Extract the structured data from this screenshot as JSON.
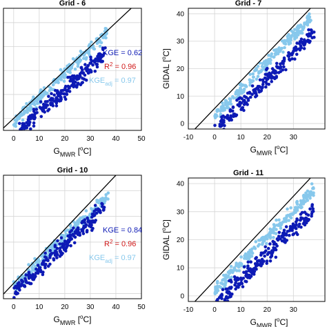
{
  "colors": {
    "measured": "#0d1ab5",
    "adjusted": "#87c8ec",
    "line": "#000000",
    "kge": "#0d1ab5",
    "r2": "#d01818",
    "kge_adj": "#87c8ec"
  },
  "chart_data": [
    {
      "type": "scatter",
      "title": "Grid - 6",
      "xlabel": "GMWR [oC]",
      "ylabel": "",
      "xlim": [
        -4,
        50
      ],
      "ylim": [
        -5,
        46
      ],
      "xticks": [
        "0",
        "10",
        "20",
        "30",
        "40",
        "50"
      ],
      "yticks": [],
      "grid": true,
      "stats": {
        "kge_label": "KGE = 0.62",
        "r2_label": "R2 = 0.96",
        "kge_adj_label": "KGEadj = 0.97"
      },
      "line": {
        "slope": 1,
        "intercept": 0
      },
      "series": [
        {
          "role": "adjusted",
          "slope": 1.02,
          "intercept": -1.5,
          "xrange": [
            0,
            37
          ],
          "noise": 1.8
        },
        {
          "role": "measured",
          "slope": 0.95,
          "intercept": -7.0,
          "xrange": [
            2,
            36
          ],
          "noise": 2.4
        }
      ]
    },
    {
      "type": "scatter",
      "title": "Grid - 7",
      "xlabel": "GMWR [oC]",
      "ylabel": "GIDAL [oC]",
      "xlim": [
        -10,
        42
      ],
      "ylim": [
        -2,
        42
      ],
      "xticks": [
        "-10",
        "0",
        "10",
        "20",
        "30"
      ],
      "yticks": [
        "0",
        "10",
        "20",
        "30",
        "40"
      ],
      "grid": true,
      "line": {
        "slope": 1.0,
        "intercept": 5.5
      },
      "series": [
        {
          "role": "adjusted",
          "slope": 1.0,
          "intercept": 2.0,
          "xrange": [
            0,
            37
          ],
          "noise": 1.6
        },
        {
          "role": "measured",
          "slope": 0.95,
          "intercept": -3.0,
          "xrange": [
            0,
            38
          ],
          "noise": 2.2
        }
      ]
    },
    {
      "type": "scatter",
      "title": "Grid - 10",
      "xlabel": "GMWR [oC]",
      "ylabel": "",
      "xlim": [
        -4,
        50
      ],
      "ylim": [
        -2,
        46
      ],
      "xticks": [
        "0",
        "10",
        "20",
        "30",
        "40",
        "50"
      ],
      "yticks": [],
      "grid": true,
      "stats": {
        "kge_label": "KGE = 0.84",
        "r2_label": "R2 = 0.96",
        "kge_adj_label": "KGEadj = 0.97"
      },
      "line": {
        "slope": 1.05,
        "intercept": 4.0
      },
      "series": [
        {
          "role": "adjusted",
          "slope": 0.95,
          "intercept": 3.0,
          "xrange": [
            0,
            37
          ],
          "noise": 1.8
        },
        {
          "role": "measured",
          "slope": 0.95,
          "intercept": 0.0,
          "xrange": [
            0,
            36
          ],
          "noise": 2.5
        }
      ]
    },
    {
      "type": "scatter",
      "title": "Grid - 11",
      "xlabel": "GMWR [oC]",
      "ylabel": "GIDAL [oC]",
      "xlim": [
        -10,
        42
      ],
      "ylim": [
        -2,
        42
      ],
      "xticks": [
        "-10",
        "0",
        "10",
        "20",
        "30"
      ],
      "yticks": [
        "0",
        "10",
        "20",
        "30",
        "40"
      ],
      "grid": true,
      "line": {
        "slope": 1.0,
        "intercept": 5.5
      },
      "series": [
        {
          "role": "adjusted",
          "slope": 0.95,
          "intercept": 2.0,
          "xrange": [
            0,
            38
          ],
          "noise": 1.6
        },
        {
          "role": "measured",
          "slope": 0.9,
          "intercept": -3.0,
          "xrange": [
            0,
            38
          ],
          "noise": 2.3
        }
      ]
    }
  ]
}
